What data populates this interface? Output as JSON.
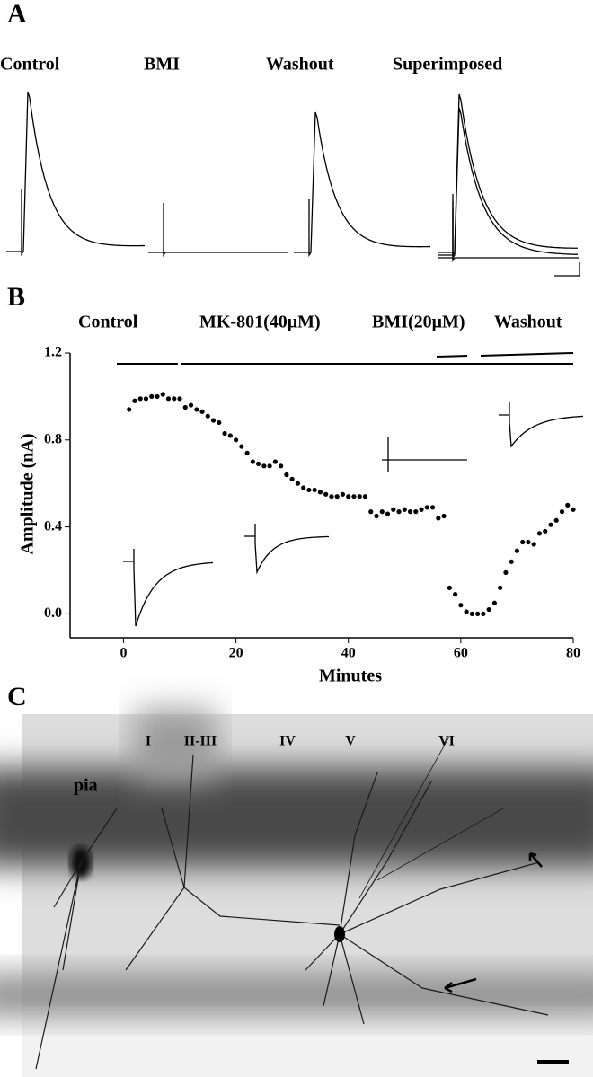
{
  "panel_labels": [
    "A",
    "B",
    "C"
  ],
  "panel_a": {
    "conditions": [
      "Control",
      "BMI",
      "Washout",
      "Superimposed"
    ]
  },
  "chart_data": {
    "type": "scatter",
    "annotations": [
      "Control",
      "MK-801(40μM)",
      "BMI(20μM)",
      "Washout"
    ],
    "xlabel": "Minutes",
    "ylabel": "Amplitude (nA)",
    "color": "#000000",
    "xlim": [
      -9.5,
      80
    ],
    "ylim": [
      -0.11,
      1.2
    ],
    "xticks": [
      0,
      20,
      40,
      60,
      80
    ],
    "yticks": [
      {
        "value": 0,
        "label": "0.0"
      },
      0.4,
      0.8,
      1.2
    ],
    "x": [
      1,
      2,
      3,
      4,
      5,
      6,
      7,
      8,
      9,
      10,
      11,
      12,
      13,
      14,
      15,
      16,
      17,
      18,
      19,
      20,
      21,
      22,
      23,
      24,
      25,
      26,
      27,
      28,
      29,
      30,
      31,
      32,
      33,
      34,
      35,
      36,
      37,
      38,
      39,
      40,
      41,
      42,
      43,
      44,
      45,
      46,
      47,
      48,
      49,
      50,
      51,
      52,
      53,
      54,
      55,
      56,
      57,
      58,
      59,
      60,
      61,
      62,
      63,
      64,
      65,
      66,
      67,
      68,
      69,
      70,
      71,
      72,
      73,
      74,
      75,
      76,
      77,
      78,
      79,
      80
    ],
    "values": [
      0.94,
      0.98,
      0.99,
      0.99,
      1.0,
      1.0,
      1.01,
      0.99,
      0.99,
      0.99,
      0.95,
      0.96,
      0.94,
      0.93,
      0.91,
      0.89,
      0.88,
      0.83,
      0.82,
      0.8,
      0.77,
      0.74,
      0.7,
      0.69,
      0.68,
      0.68,
      0.7,
      0.68,
      0.64,
      0.62,
      0.6,
      0.58,
      0.57,
      0.57,
      0.56,
      0.55,
      0.54,
      0.54,
      0.55,
      0.54,
      0.54,
      0.54,
      0.54,
      0.47,
      0.45,
      0.47,
      0.46,
      0.48,
      0.47,
      0.48,
      0.47,
      0.47,
      0.48,
      0.49,
      0.49,
      0.44,
      0.45,
      0.12,
      0.09,
      0.04,
      0.01,
      0.0,
      0.0,
      0.0,
      0.02,
      0.05,
      0.12,
      0.19,
      0.24,
      0.29,
      0.33,
      0.33,
      0.32,
      0.37,
      0.38,
      0.41,
      0.43,
      0.47,
      0.5,
      0.48
    ]
  },
  "panel_c": {
    "region": "pia",
    "layers": [
      "I",
      "II-III",
      "IV",
      "V",
      "VI"
    ]
  }
}
